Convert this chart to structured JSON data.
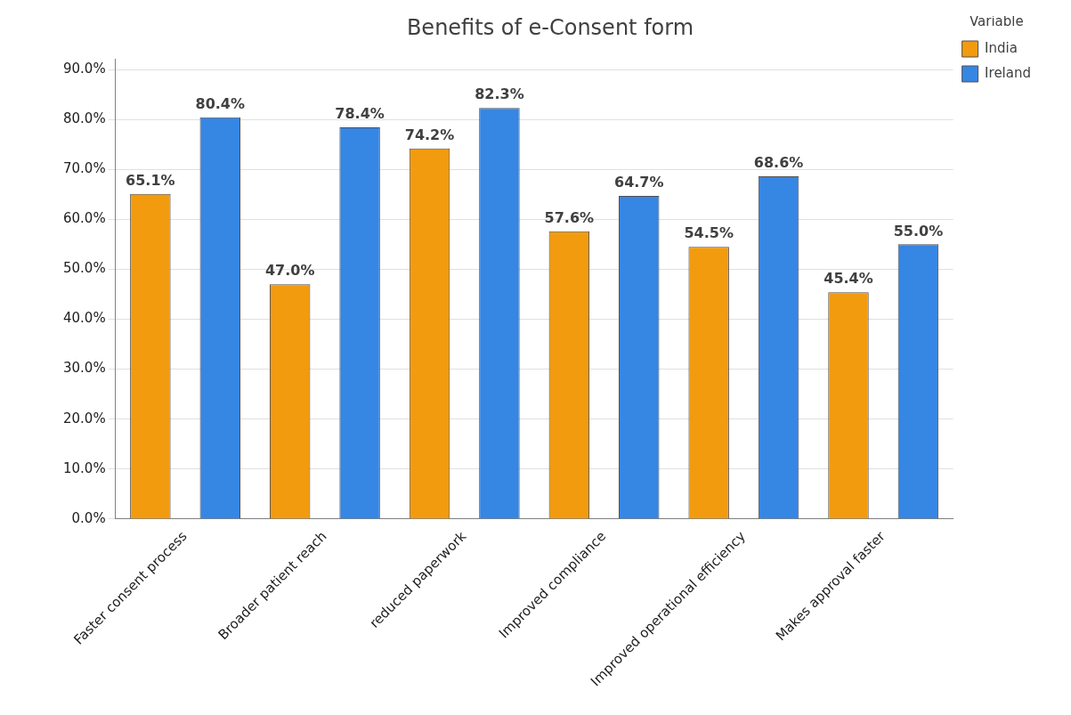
{
  "chart_data": {
    "type": "bar",
    "title": "Benefits of e-Consent form",
    "legend_title": "Variable",
    "legend": "top right",
    "grid": "y",
    "categories": [
      "Faster consent process",
      "Broader patient reach",
      "reduced paperwork",
      "Improved compliance",
      "Improved operational efficiency",
      "Makes approval faster"
    ],
    "series": [
      {
        "name": "India",
        "color": "#f29b0f",
        "values": [
          65.1,
          47.0,
          74.2,
          57.6,
          54.5,
          45.4
        ],
        "value_labels": [
          "65.1%",
          "47.0%",
          "74.2%",
          "57.6%",
          "54.5%",
          "45.4%"
        ]
      },
      {
        "name": "Ireland",
        "color": "#3686e3",
        "values": [
          80.4,
          78.4,
          82.3,
          64.7,
          68.6,
          55.0
        ],
        "value_labels": [
          "80.4%",
          "78.4%",
          "82.3%",
          "64.7%",
          "68.6%",
          "55.0%"
        ]
      }
    ],
    "ylim": [
      0,
      92
    ],
    "yticks": [
      {
        "value": 0,
        "label": "0.0%"
      },
      {
        "value": 10,
        "label": "10.0%"
      },
      {
        "value": 20,
        "label": "20.0%"
      },
      {
        "value": 30,
        "label": "30.0%"
      },
      {
        "value": 40,
        "label": "40.0%"
      },
      {
        "value": 50,
        "label": "50.0%"
      },
      {
        "value": 60,
        "label": "60.0%"
      },
      {
        "value": 70,
        "label": "70.0%"
      },
      {
        "value": 80,
        "label": "80.0%"
      },
      {
        "value": 90,
        "label": "90.0%"
      }
    ]
  }
}
